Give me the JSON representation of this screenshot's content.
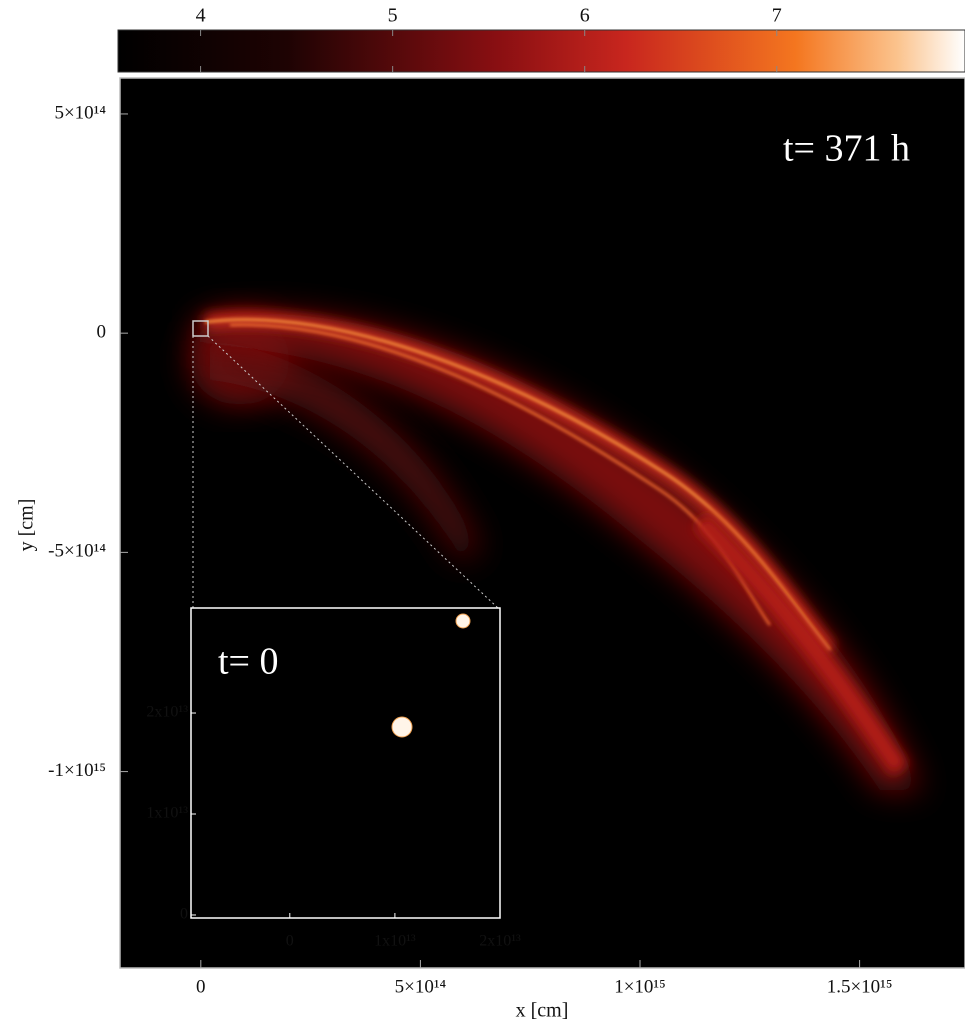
{
  "chart_data": {
    "type": "density-map",
    "xlabel": "x [cm]",
    "ylabel": "y [cm]",
    "annotation": "t= 371 h",
    "xlim": [
      -184000000000000,
      1740000000000000
    ],
    "ylim": [
      -1448000000000000,
      582000000000000
    ],
    "xticks": [
      0,
      {
        "value": 500000000000000,
        "label": "5×10¹⁴"
      },
      {
        "value": 1000000000000000,
        "label": "1×10¹⁵"
      },
      {
        "value": 1500000000000000,
        "label": "1.5×10¹⁵"
      }
    ],
    "yticks": [
      {
        "value": 500000000000000,
        "label": "5×10¹⁴"
      },
      0,
      {
        "value": -500000000000000,
        "label": "-5×10¹⁴"
      },
      {
        "value": -1000000000000000,
        "label": "-1×10¹⁵"
      }
    ],
    "colorbar_lim": [
      3.57,
      7.98
    ],
    "colorbar_ticks": [
      4,
      5,
      6,
      7
    ],
    "inset": {
      "annotation": "t= 0",
      "xlim": [
        -9400000000000,
        20000000000000
      ],
      "ylim": [
        -300000000000,
        30400000000000
      ],
      "xticks": [
        0,
        {
          "value": 10000000000000,
          "label": "1x10¹³"
        },
        {
          "value": 20000000000000,
          "label": "2x10¹³"
        }
      ],
      "yticks": [
        0,
        {
          "value": 10000000000000,
          "label": "1x10¹³"
        },
        {
          "value": 20000000000000,
          "label": "2x10¹³"
        }
      ]
    }
  }
}
